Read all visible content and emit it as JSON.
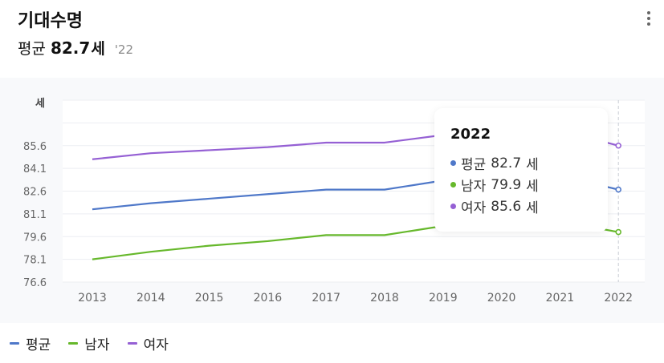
{
  "header": {
    "title": "기대수명",
    "summary_label": "평균",
    "summary_value": "82.7",
    "summary_unit": "세",
    "summary_year": "'22",
    "more_icon": "more-vertical-icon"
  },
  "tooltip": {
    "year": "2022",
    "rows": [
      {
        "label": "평균",
        "value": "82.7",
        "unit": "세",
        "color": "#4f78c9"
      },
      {
        "label": "남자",
        "value": "79.9",
        "unit": "세",
        "color": "#66b82b"
      },
      {
        "label": "여자",
        "value": "85.6",
        "unit": "세",
        "color": "#9560d4"
      }
    ]
  },
  "legend": [
    {
      "label": "평균",
      "color": "#4f78c9"
    },
    {
      "label": "남자",
      "color": "#66b82b"
    },
    {
      "label": "여자",
      "color": "#9560d4"
    }
  ],
  "chart_data": {
    "type": "line",
    "ylabel": "세",
    "x": [
      "2013",
      "2014",
      "2015",
      "2016",
      "2017",
      "2018",
      "2019",
      "2020",
      "2021",
      "2022"
    ],
    "yticks": [
      "76.6",
      "78.1",
      "79.6",
      "81.1",
      "82.6",
      "84.1",
      "85.6"
    ],
    "ylim": [
      76.6,
      88.6
    ],
    "grid": true,
    "legend_position": "bottom-left",
    "highlight_x": "2022",
    "series": [
      {
        "name": "평균",
        "color": "#4f78c9",
        "values": [
          81.4,
          81.8,
          82.1,
          82.4,
          82.7,
          82.7,
          83.3,
          83.5,
          83.6,
          82.7
        ]
      },
      {
        "name": "남자",
        "color": "#66b82b",
        "values": [
          78.1,
          78.6,
          79.0,
          79.3,
          79.7,
          79.7,
          80.3,
          80.5,
          80.6,
          79.9
        ]
      },
      {
        "name": "여자",
        "color": "#9560d4",
        "values": [
          84.7,
          85.1,
          85.3,
          85.5,
          85.8,
          85.8,
          86.3,
          86.5,
          86.6,
          85.6
        ]
      }
    ]
  }
}
